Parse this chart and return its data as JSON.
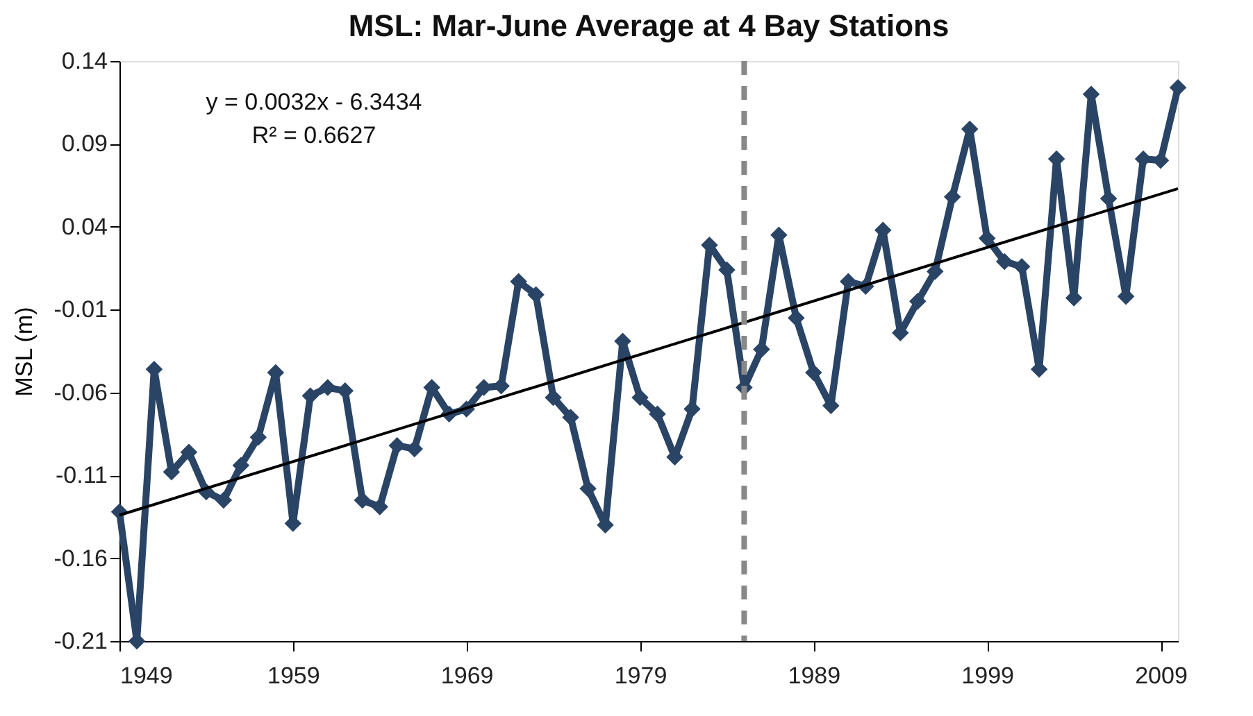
{
  "chart_data": {
    "type": "line",
    "title": "MSL: Mar-June Average at 4 Bay Stations",
    "ylabel": "MSL (m)",
    "annotations": [
      "y = 0.0032x - 6.3434",
      "R² = 0.6627"
    ],
    "xlim": [
      1949,
      2010
    ],
    "xticks": [
      1949,
      1959,
      1969,
      1979,
      1989,
      1999,
      2009
    ],
    "ylim": [
      -0.21,
      0.14
    ],
    "yticks": [
      -0.21,
      -0.16,
      -0.11,
      -0.06,
      -0.01,
      0.04,
      0.09,
      0.14
    ],
    "grid": false,
    "marker": "diamond",
    "line_style": "solid",
    "ref_lines": [
      {
        "axis": "x",
        "value": 1985,
        "color": "#888888",
        "line_style": "dashed"
      }
    ],
    "series": [
      {
        "color": "#2a4466",
        "x": [
          1949,
          1950,
          1951,
          1952,
          1953,
          1954,
          1955,
          1956,
          1957,
          1958,
          1959,
          1960,
          1961,
          1962,
          1963,
          1964,
          1965,
          1966,
          1967,
          1968,
          1969,
          1970,
          1971,
          1972,
          1973,
          1974,
          1975,
          1976,
          1977,
          1978,
          1979,
          1980,
          1981,
          1982,
          1983,
          1984,
          1985,
          1986,
          1987,
          1988,
          1989,
          1990,
          1991,
          1992,
          1993,
          1994,
          1995,
          1996,
          1997,
          1998,
          1999,
          2000,
          2001,
          2002,
          2003,
          2004,
          2005,
          2006,
          2007,
          2008,
          2009,
          2010
        ],
        "values": [
          -0.132,
          -0.21,
          -0.046,
          -0.108,
          -0.096,
          -0.12,
          -0.125,
          -0.104,
          -0.087,
          -0.048,
          -0.139,
          -0.062,
          -0.057,
          -0.059,
          -0.125,
          -0.129,
          -0.092,
          -0.094,
          -0.057,
          -0.073,
          -0.07,
          -0.057,
          -0.056,
          0.007,
          -0.001,
          -0.063,
          -0.075,
          -0.118,
          -0.14,
          -0.029,
          -0.063,
          -0.073,
          -0.099,
          -0.07,
          0.029,
          0.014,
          -0.057,
          -0.034,
          0.035,
          -0.015,
          -0.048,
          -0.068,
          0.007,
          0.004,
          0.038,
          -0.024,
          -0.005,
          0.013,
          0.058,
          0.099,
          0.033,
          0.019,
          0.016,
          -0.046,
          0.081,
          -0.003,
          0.12,
          0.057,
          -0.002,
          0.081,
          0.08,
          0.124
        ]
      },
      {
        "type": "line",
        "color": "#000000",
        "marker": "none",
        "x": [
          1949,
          2010
        ],
        "values": [
          -0.134,
          0.063
        ]
      }
    ]
  }
}
